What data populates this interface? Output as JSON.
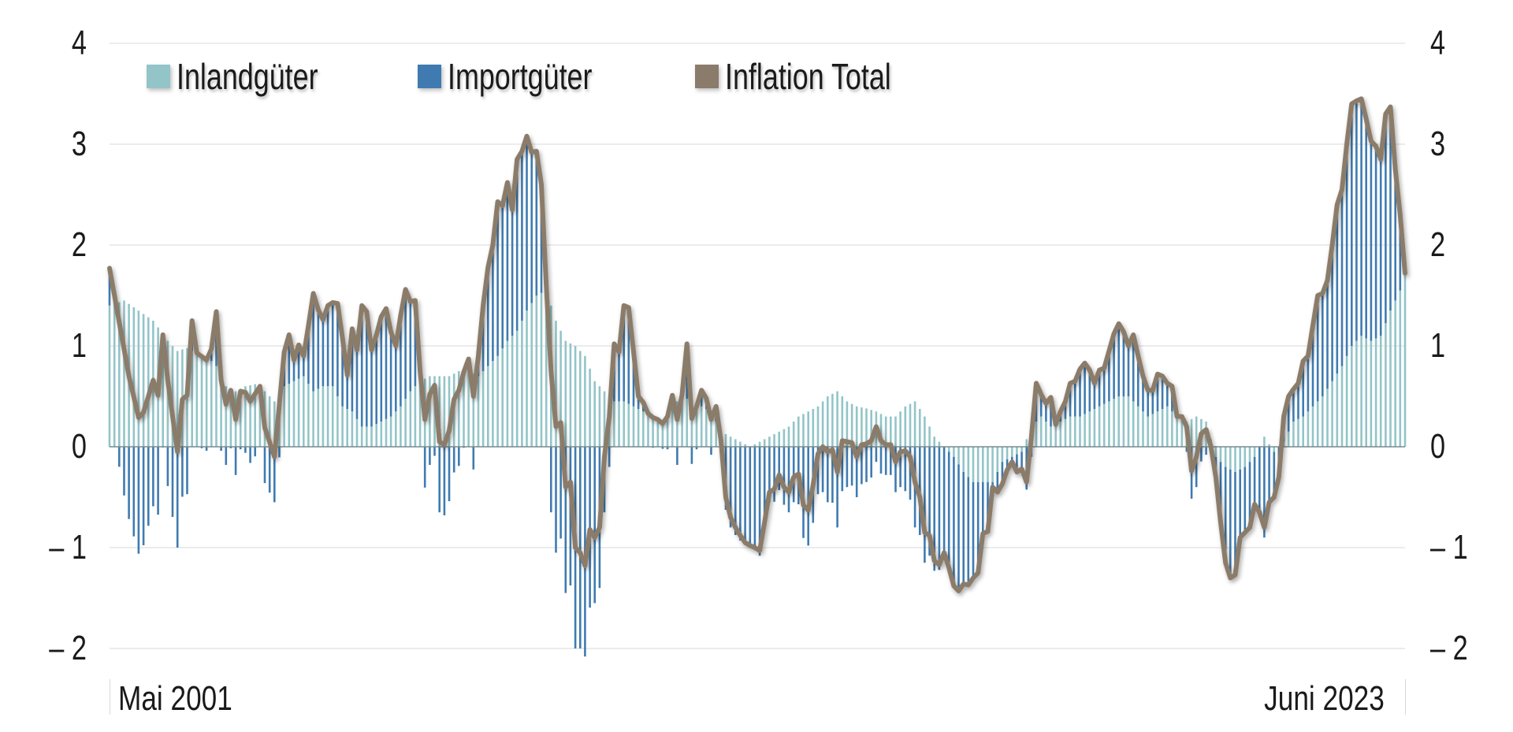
{
  "chart_data": {
    "type": "bar+line",
    "title": "",
    "xlabel": "",
    "ylabel": "",
    "ylim": [
      -2,
      4
    ],
    "yticks": [
      4,
      3,
      2,
      1,
      0,
      -1,
      -2
    ],
    "ytick_labels": [
      "4",
      "3",
      "2",
      "1",
      "0",
      "– 1",
      "– 2"
    ],
    "grid": true,
    "legend_position": "top-left inside",
    "x_start_label": "Mai 2001",
    "x_end_label": "Juni 2023",
    "x_range": [
      "2001-05",
      "2023-06"
    ],
    "frequency": "monthly",
    "colors": {
      "Inlandgüter": "#93c4c8",
      "Importgüter": "#3f7bb0",
      "Inflation Total": "#8b7b6b"
    },
    "legend": [
      "Inlandgüter",
      "Importgüter",
      "Inflation Total"
    ],
    "anchors_total": [
      [
        0,
        1.77
      ],
      [
        4,
        0.7
      ],
      [
        6,
        0.29
      ],
      [
        7,
        0.34
      ],
      [
        9,
        0.66
      ],
      [
        10,
        0.51
      ],
      [
        11,
        1.11
      ],
      [
        12,
        0.66
      ],
      [
        14,
        -0.05
      ],
      [
        15,
        0.47
      ],
      [
        16,
        0.51
      ],
      [
        17,
        1.25
      ],
      [
        18,
        0.93
      ],
      [
        20,
        0.86
      ],
      [
        21,
        0.97
      ],
      [
        22,
        1.34
      ],
      [
        23,
        0.66
      ],
      [
        24,
        0.42
      ],
      [
        25,
        0.56
      ],
      [
        26,
        0.27
      ],
      [
        27,
        0.55
      ],
      [
        28,
        0.54
      ],
      [
        29,
        0.45
      ],
      [
        31,
        0.6
      ],
      [
        32,
        0.19
      ],
      [
        34,
        -0.1
      ],
      [
        36,
        0.94
      ],
      [
        37,
        1.11
      ],
      [
        38,
        0.86
      ],
      [
        39,
        1.01
      ],
      [
        40,
        0.9
      ],
      [
        41,
        1.2
      ],
      [
        42,
        1.52
      ],
      [
        43,
        1.36
      ],
      [
        44,
        1.26
      ],
      [
        45,
        1.4
      ],
      [
        46,
        1.43
      ],
      [
        47,
        1.42
      ],
      [
        48,
        1.08
      ],
      [
        49,
        0.71
      ],
      [
        50,
        1.17
      ],
      [
        51,
        0.96
      ],
      [
        52,
        1.4
      ],
      [
        53,
        1.34
      ],
      [
        54,
        0.96
      ],
      [
        55,
        1.11
      ],
      [
        56,
        1.29
      ],
      [
        57,
        1.37
      ],
      [
        58,
        1.14
      ],
      [
        59,
        1.0
      ],
      [
        60,
        1.3
      ],
      [
        61,
        1.56
      ],
      [
        62,
        1.44
      ],
      [
        63,
        1.45
      ],
      [
        64,
        0.75
      ],
      [
        65,
        0.27
      ],
      [
        66,
        0.52
      ],
      [
        67,
        0.61
      ],
      [
        68,
        0.05
      ],
      [
        69,
        0.02
      ],
      [
        70,
        0.16
      ],
      [
        71,
        0.47
      ],
      [
        72,
        0.56
      ],
      [
        73,
        0.74
      ],
      [
        74,
        0.87
      ],
      [
        75,
        0.5
      ],
      [
        76,
        0.9
      ],
      [
        77,
        1.4
      ],
      [
        78,
        1.78
      ],
      [
        79,
        2.0
      ],
      [
        80,
        2.43
      ],
      [
        81,
        2.39
      ],
      [
        82,
        2.62
      ],
      [
        83,
        2.35
      ],
      [
        84,
        2.85
      ],
      [
        85,
        2.93
      ],
      [
        86,
        3.08
      ],
      [
        87,
        2.92
      ],
      [
        88,
        2.93
      ],
      [
        89,
        2.6
      ],
      [
        90,
        1.6
      ],
      [
        91,
        0.75
      ],
      [
        92,
        0.2
      ],
      [
        93,
        0.24
      ],
      [
        94,
        -0.4
      ],
      [
        95,
        -0.35
      ],
      [
        96,
        -1.0
      ],
      [
        97,
        -1.05
      ],
      [
        98,
        -1.18
      ],
      [
        99,
        -0.82
      ],
      [
        100,
        -0.9
      ],
      [
        101,
        -0.8
      ],
      [
        102,
        -0.1
      ],
      [
        103,
        0.3
      ],
      [
        104,
        1.02
      ],
      [
        105,
        0.94
      ],
      [
        106,
        1.4
      ],
      [
        107,
        1.38
      ],
      [
        108,
        0.94
      ],
      [
        109,
        0.5
      ],
      [
        110,
        0.44
      ],
      [
        111,
        0.33
      ],
      [
        112,
        0.29
      ],
      [
        113,
        0.27
      ],
      [
        114,
        0.23
      ],
      [
        115,
        0.3
      ],
      [
        116,
        0.51
      ],
      [
        117,
        0.27
      ],
      [
        118,
        0.52
      ],
      [
        119,
        1.02
      ],
      [
        120,
        0.28
      ],
      [
        121,
        0.4
      ],
      [
        122,
        0.56
      ],
      [
        123,
        0.48
      ],
      [
        124,
        0.27
      ],
      [
        125,
        0.4
      ],
      [
        126,
        0.07
      ],
      [
        127,
        -0.5
      ],
      [
        128,
        -0.7
      ],
      [
        129,
        -0.8
      ],
      [
        130,
        -0.88
      ],
      [
        131,
        -0.95
      ],
      [
        132,
        -0.98
      ],
      [
        133,
        -1.0
      ],
      [
        134,
        -1.03
      ],
      [
        135,
        -0.75
      ],
      [
        136,
        -0.45
      ],
      [
        137,
        -0.42
      ],
      [
        138,
        -0.28
      ],
      [
        139,
        -0.4
      ],
      [
        140,
        -0.45
      ],
      [
        141,
        -0.3
      ],
      [
        142,
        -0.27
      ],
      [
        143,
        -0.58
      ],
      [
        144,
        -0.63
      ],
      [
        145,
        -0.38
      ],
      [
        146,
        -0.07
      ],
      [
        147,
        0.0
      ],
      [
        148,
        -0.05
      ],
      [
        149,
        -0.03
      ],
      [
        150,
        -0.25
      ],
      [
        151,
        0.06
      ],
      [
        152,
        0.05
      ],
      [
        153,
        0.04
      ],
      [
        154,
        -0.1
      ],
      [
        155,
        0.02
      ],
      [
        156,
        0.03
      ],
      [
        157,
        0.06
      ],
      [
        158,
        0.2
      ],
      [
        159,
        0.06
      ],
      [
        160,
        0.02
      ],
      [
        161,
        0.02
      ],
      [
        162,
        -0.15
      ],
      [
        163,
        -0.05
      ],
      [
        164,
        -0.04
      ],
      [
        165,
        -0.1
      ],
      [
        166,
        -0.35
      ],
      [
        167,
        -0.5
      ],
      [
        168,
        -0.85
      ],
      [
        169,
        -0.88
      ],
      [
        170,
        -1.13
      ],
      [
        171,
        -1.17
      ],
      [
        172,
        -1.05
      ],
      [
        173,
        -1.2
      ],
      [
        174,
        -1.38
      ],
      [
        175,
        -1.43
      ],
      [
        176,
        -1.36
      ],
      [
        177,
        -1.37
      ],
      [
        178,
        -1.3
      ],
      [
        179,
        -1.25
      ],
      [
        180,
        -0.86
      ],
      [
        181,
        -0.84
      ],
      [
        182,
        -0.4
      ],
      [
        183,
        -0.45
      ],
      [
        184,
        -0.37
      ],
      [
        185,
        -0.23
      ],
      [
        186,
        -0.15
      ],
      [
        187,
        -0.25
      ],
      [
        188,
        -0.22
      ],
      [
        189,
        -0.35
      ],
      [
        190,
        0.1
      ],
      [
        191,
        0.63
      ],
      [
        192,
        0.52
      ],
      [
        193,
        0.43
      ],
      [
        194,
        0.49
      ],
      [
        195,
        0.22
      ],
      [
        196,
        0.35
      ],
      [
        197,
        0.45
      ],
      [
        198,
        0.63
      ],
      [
        199,
        0.65
      ],
      [
        200,
        0.77
      ],
      [
        201,
        0.83
      ],
      [
        202,
        0.76
      ],
      [
        203,
        0.63
      ],
      [
        204,
        0.76
      ],
      [
        205,
        0.78
      ],
      [
        206,
        0.95
      ],
      [
        207,
        1.12
      ],
      [
        208,
        1.22
      ],
      [
        209,
        1.14
      ],
      [
        210,
        1.0
      ],
      [
        211,
        1.11
      ],
      [
        212,
        0.9
      ],
      [
        213,
        0.7
      ],
      [
        214,
        0.56
      ],
      [
        215,
        0.56
      ],
      [
        216,
        0.72
      ],
      [
        217,
        0.7
      ],
      [
        218,
        0.63
      ],
      [
        219,
        0.6
      ],
      [
        220,
        0.3
      ],
      [
        221,
        0.3
      ],
      [
        222,
        0.2
      ],
      [
        223,
        -0.24
      ],
      [
        224,
        -0.1
      ],
      [
        225,
        0.13
      ],
      [
        226,
        0.17
      ],
      [
        227,
        0.0
      ],
      [
        228,
        -0.3
      ],
      [
        229,
        -0.75
      ],
      [
        230,
        -1.15
      ],
      [
        231,
        -1.3
      ],
      [
        232,
        -1.27
      ],
      [
        233,
        -0.9
      ],
      [
        234,
        -0.85
      ],
      [
        235,
        -0.8
      ],
      [
        236,
        -0.57
      ],
      [
        237,
        -0.65
      ],
      [
        238,
        -0.8
      ],
      [
        239,
        -0.55
      ],
      [
        240,
        -0.5
      ],
      [
        241,
        -0.3
      ],
      [
        242,
        0.3
      ],
      [
        243,
        0.5
      ],
      [
        244,
        0.57
      ],
      [
        245,
        0.63
      ],
      [
        246,
        0.85
      ],
      [
        247,
        0.9
      ],
      [
        248,
        1.2
      ],
      [
        249,
        1.5
      ],
      [
        250,
        1.52
      ],
      [
        251,
        1.65
      ],
      [
        252,
        2.0
      ],
      [
        253,
        2.4
      ],
      [
        254,
        2.55
      ],
      [
        255,
        3.0
      ],
      [
        256,
        3.4
      ],
      [
        257,
        3.43
      ],
      [
        258,
        3.45
      ],
      [
        259,
        3.25
      ],
      [
        260,
        3.03
      ],
      [
        261,
        2.98
      ],
      [
        262,
        2.85
      ],
      [
        263,
        3.3
      ],
      [
        264,
        3.37
      ],
      [
        265,
        2.75
      ],
      [
        266,
        2.3
      ],
      [
        267,
        1.72
      ]
    ],
    "anchors_inland": [
      [
        0,
        1.4
      ],
      [
        3,
        1.45
      ],
      [
        6,
        1.35
      ],
      [
        9,
        1.25
      ],
      [
        12,
        1.05
      ],
      [
        14,
        0.95
      ],
      [
        16,
        0.98
      ],
      [
        18,
        0.92
      ],
      [
        20,
        0.9
      ],
      [
        22,
        0.8
      ],
      [
        24,
        0.6
      ],
      [
        26,
        0.55
      ],
      [
        28,
        0.6
      ],
      [
        30,
        0.62
      ],
      [
        32,
        0.55
      ],
      [
        34,
        0.45
      ],
      [
        36,
        0.6
      ],
      [
        38,
        0.65
      ],
      [
        40,
        0.7
      ],
      [
        42,
        0.55
      ],
      [
        44,
        0.6
      ],
      [
        46,
        0.6
      ],
      [
        48,
        0.4
      ],
      [
        50,
        0.35
      ],
      [
        52,
        0.2
      ],
      [
        54,
        0.2
      ],
      [
        56,
        0.25
      ],
      [
        58,
        0.3
      ],
      [
        60,
        0.4
      ],
      [
        62,
        0.55
      ],
      [
        64,
        0.65
      ],
      [
        66,
        0.7
      ],
      [
        68,
        0.7
      ],
      [
        70,
        0.7
      ],
      [
        72,
        0.75
      ],
      [
        74,
        0.75
      ],
      [
        76,
        0.7
      ],
      [
        78,
        0.8
      ],
      [
        80,
        0.9
      ],
      [
        82,
        1.05
      ],
      [
        84,
        1.15
      ],
      [
        86,
        1.35
      ],
      [
        88,
        1.5
      ],
      [
        90,
        1.55
      ],
      [
        92,
        1.25
      ],
      [
        94,
        1.05
      ],
      [
        96,
        1.0
      ],
      [
        98,
        0.9
      ],
      [
        100,
        0.65
      ],
      [
        102,
        0.55
      ],
      [
        104,
        0.45
      ],
      [
        106,
        0.45
      ],
      [
        108,
        0.4
      ],
      [
        110,
        0.35
      ],
      [
        112,
        0.3
      ],
      [
        114,
        0.25
      ],
      [
        116,
        0.4
      ],
      [
        118,
        0.5
      ],
      [
        120,
        0.45
      ],
      [
        122,
        0.4
      ],
      [
        124,
        0.35
      ],
      [
        126,
        0.15
      ],
      [
        128,
        0.1
      ],
      [
        130,
        0.05
      ],
      [
        132,
        0.0
      ],
      [
        134,
        0.05
      ],
      [
        136,
        0.1
      ],
      [
        138,
        0.15
      ],
      [
        140,
        0.2
      ],
      [
        142,
        0.3
      ],
      [
        144,
        0.35
      ],
      [
        146,
        0.4
      ],
      [
        148,
        0.5
      ],
      [
        150,
        0.55
      ],
      [
        152,
        0.45
      ],
      [
        154,
        0.4
      ],
      [
        156,
        0.38
      ],
      [
        158,
        0.35
      ],
      [
        160,
        0.3
      ],
      [
        162,
        0.3
      ],
      [
        164,
        0.4
      ],
      [
        166,
        0.45
      ],
      [
        168,
        0.3
      ],
      [
        170,
        0.1
      ],
      [
        172,
        0.0
      ],
      [
        174,
        -0.1
      ],
      [
        176,
        -0.25
      ],
      [
        178,
        -0.35
      ],
      [
        180,
        -0.35
      ],
      [
        182,
        -0.35
      ],
      [
        184,
        -0.15
      ],
      [
        186,
        -0.1
      ],
      [
        188,
        -0.05
      ],
      [
        190,
        0.2
      ],
      [
        192,
        0.3
      ],
      [
        194,
        0.2
      ],
      [
        196,
        0.25
      ],
      [
        198,
        0.3
      ],
      [
        200,
        0.3
      ],
      [
        202,
        0.35
      ],
      [
        204,
        0.4
      ],
      [
        206,
        0.45
      ],
      [
        208,
        0.5
      ],
      [
        210,
        0.5
      ],
      [
        212,
        0.4
      ],
      [
        214,
        0.3
      ],
      [
        216,
        0.35
      ],
      [
        218,
        0.4
      ],
      [
        220,
        0.3
      ],
      [
        222,
        0.25
      ],
      [
        224,
        0.3
      ],
      [
        226,
        0.25
      ],
      [
        228,
        -0.1
      ],
      [
        230,
        -0.2
      ],
      [
        232,
        -0.25
      ],
      [
        234,
        -0.2
      ],
      [
        236,
        -0.1
      ],
      [
        238,
        0.1
      ],
      [
        240,
        -0.05
      ],
      [
        242,
        0.05
      ],
      [
        244,
        0.25
      ],
      [
        246,
        0.3
      ],
      [
        248,
        0.4
      ],
      [
        250,
        0.5
      ],
      [
        252,
        0.65
      ],
      [
        254,
        0.8
      ],
      [
        256,
        1.0
      ],
      [
        258,
        1.1
      ],
      [
        260,
        1.05
      ],
      [
        262,
        1.1
      ],
      [
        264,
        1.35
      ],
      [
        265,
        1.45
      ],
      [
        266,
        1.55
      ],
      [
        267,
        1.7
      ]
    ]
  }
}
